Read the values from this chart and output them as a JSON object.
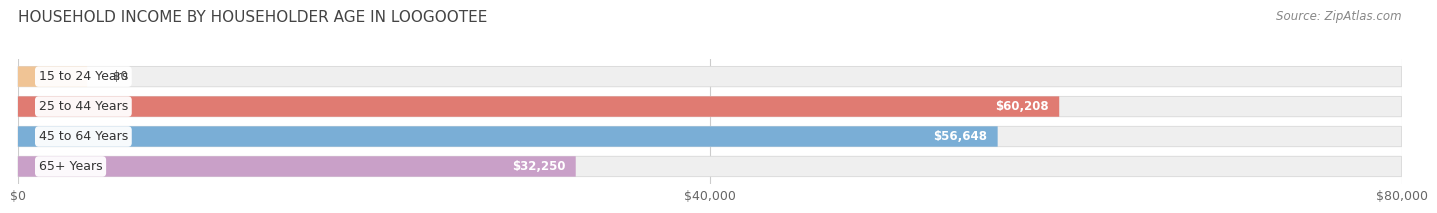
{
  "title": "HOUSEHOLD INCOME BY HOUSEHOLDER AGE IN LOOGOOTEE",
  "source": "Source: ZipAtlas.com",
  "categories": [
    "15 to 24 Years",
    "25 to 44 Years",
    "45 to 64 Years",
    "65+ Years"
  ],
  "values": [
    0,
    60208,
    56648,
    32250
  ],
  "labels": [
    "$0",
    "$60,208",
    "$56,648",
    "$32,250"
  ],
  "bar_colors": [
    "#f0c495",
    "#e07b72",
    "#7aaed6",
    "#c9a0c8"
  ],
  "xlim": [
    0,
    80000
  ],
  "xticks": [
    0,
    40000,
    80000
  ],
  "xticklabels": [
    "$0",
    "$40,000",
    "$80,000"
  ],
  "background_color": "#ffffff",
  "title_fontsize": 11,
  "source_fontsize": 8.5,
  "label_fontsize": 8.5,
  "tick_fontsize": 9,
  "category_fontsize": 9,
  "zero_bar_width": 4000
}
